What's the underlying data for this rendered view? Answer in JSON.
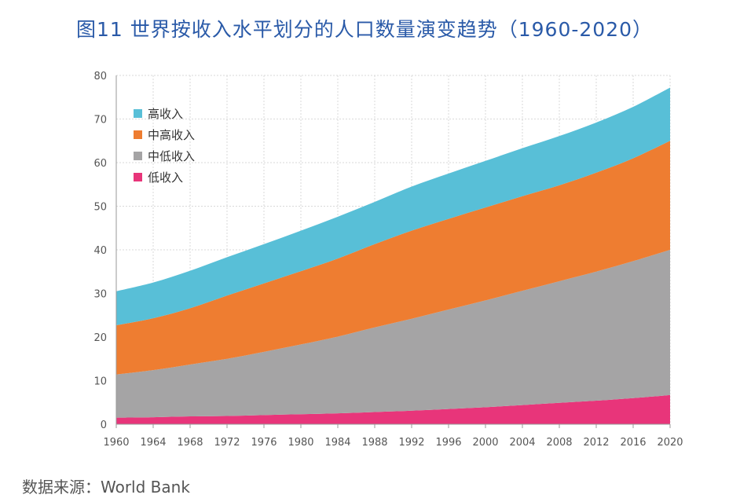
{
  "title": "图11  世界按收入水平划分的人口数量演变趋势（1960-2020）",
  "source": "数据来源：World Bank",
  "chart_data": {
    "type": "area",
    "stacked": true,
    "x": [
      1960,
      1964,
      1968,
      1972,
      1976,
      1980,
      1984,
      1988,
      1992,
      1996,
      2000,
      2004,
      2008,
      2012,
      2016,
      2020
    ],
    "x_ticks": [
      "1960",
      "1964",
      "1968",
      "1972",
      "1976",
      "1980",
      "1984",
      "1988",
      "1992",
      "1996",
      "2000",
      "2004",
      "2008",
      "2012",
      "2016",
      "2020"
    ],
    "ylim": [
      0,
      80
    ],
    "y_ticks": [
      "0",
      "10",
      "20",
      "30",
      "40",
      "50",
      "60",
      "70",
      "80"
    ],
    "grid": true,
    "legend_position": "top-left",
    "series": [
      {
        "name": "低收入",
        "color": "#e8357a",
        "values": [
          1.5,
          1.6,
          1.8,
          1.9,
          2.1,
          2.3,
          2.5,
          2.8,
          3.1,
          3.5,
          3.9,
          4.4,
          4.9,
          5.4,
          6.0,
          6.7
        ]
      },
      {
        "name": "中低收入",
        "color": "#a5a4a5",
        "values": [
          9.9,
          10.8,
          11.9,
          13.1,
          14.5,
          16.0,
          17.6,
          19.4,
          21.1,
          22.8,
          24.5,
          26.2,
          27.9,
          29.6,
          31.4,
          33.3
        ]
      },
      {
        "name": "中高收入",
        "color": "#ee7d31",
        "values": [
          11.3,
          11.9,
          12.9,
          14.5,
          15.7,
          16.8,
          17.9,
          19.1,
          20.2,
          20.8,
          21.3,
          21.7,
          22.0,
          22.7,
          23.6,
          25.0
        ]
      },
      {
        "name": "高收入",
        "color": "#58bfd7",
        "values": [
          7.8,
          8.2,
          8.6,
          8.8,
          9.0,
          9.3,
          9.6,
          9.7,
          10.1,
          10.4,
          10.7,
          11.0,
          11.3,
          11.5,
          11.8,
          12.2
        ]
      }
    ],
    "legend_order": [
      "高收入",
      "中高收入",
      "中低收入",
      "低收入"
    ]
  }
}
